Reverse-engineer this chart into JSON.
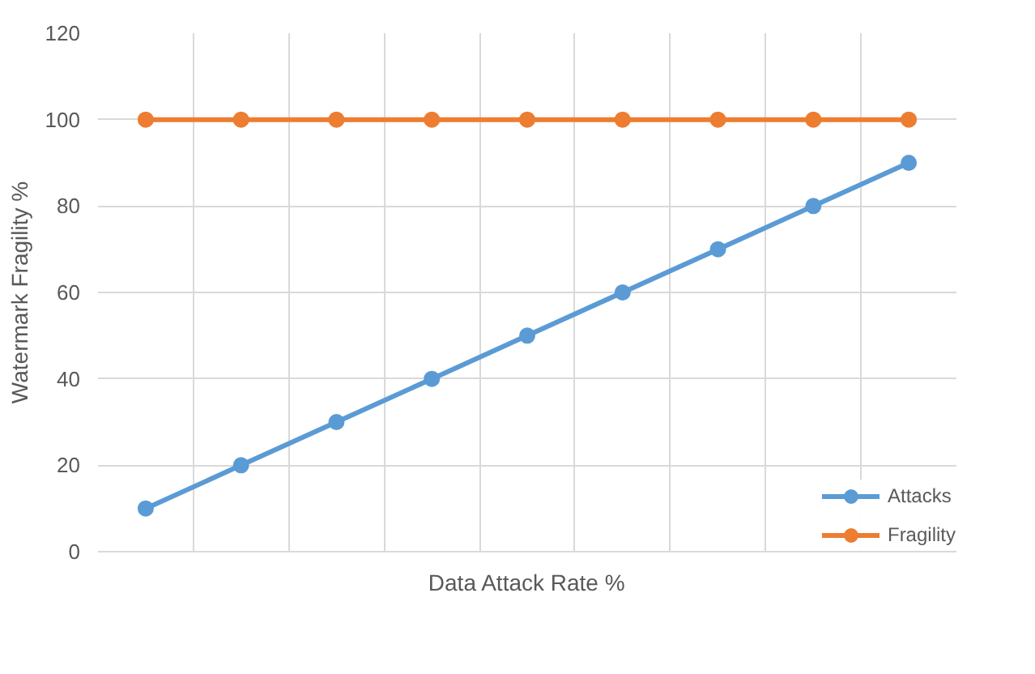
{
  "chart_data": {
    "type": "line",
    "xlabel": "Data Attack Rate %",
    "ylabel": "Watermark Fragility %",
    "categories": [
      null,
      null,
      null,
      null,
      null,
      null,
      null,
      null,
      null
    ],
    "series": [
      {
        "name": "Attacks",
        "color": "#5b9bd5",
        "values": [
          10,
          20,
          30,
          40,
          50,
          60,
          70,
          80,
          90
        ]
      },
      {
        "name": "Fragility",
        "color": "#ed7d31",
        "values": [
          100,
          100,
          100,
          100,
          100,
          100,
          100,
          100,
          100
        ]
      }
    ],
    "ylim": [
      0,
      120
    ],
    "yticks": [
      0,
      20,
      40,
      60,
      80,
      100,
      120
    ],
    "grid": true,
    "legend": "bottom right",
    "marker": "circle",
    "line_style": "solid",
    "tick_labels": "y"
  }
}
